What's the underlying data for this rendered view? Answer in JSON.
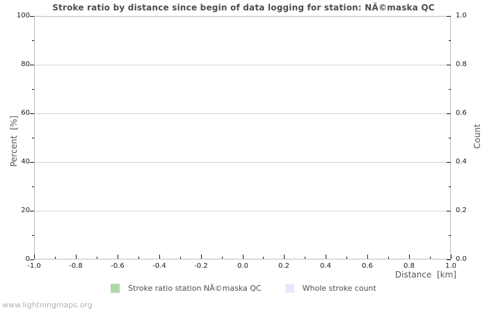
{
  "chart_data": {
    "type": "line",
    "title": "Stroke ratio by distance since begin of data logging for station: NÃ©maska QC",
    "xlabel": "Distance  [km]",
    "ylabel_left": "Percent  [%]",
    "ylabel_right": "Count",
    "xlim": [
      -1.0,
      1.0
    ],
    "ylim_left": [
      0,
      100
    ],
    "ylim_right": [
      0.0,
      1.0
    ],
    "x_ticks": [
      "-1.0",
      "-0.8",
      "-0.6",
      "-0.4",
      "-0.2",
      "0.0",
      "0.2",
      "0.4",
      "0.6",
      "0.8",
      "1.0"
    ],
    "y_ticks_left": [
      "0",
      "20",
      "40",
      "60",
      "80",
      "100"
    ],
    "y_ticks_right": [
      "0.0",
      "0.2",
      "0.4",
      "0.6",
      "0.8",
      "1.0"
    ],
    "grid": "horizontal-major-only",
    "legend_position": "bottom-center",
    "series": [
      {
        "name": "Stroke ratio station NÃ©maska QC",
        "color": "#aedaa8",
        "axis": "left",
        "x": [],
        "values": []
      },
      {
        "name": "Whole stroke count",
        "color": "#e8e8fa",
        "axis": "right",
        "x": [],
        "values": []
      }
    ]
  },
  "watermark": "www.lightningmaps.org",
  "colors": {
    "background": "#ffffff",
    "plot_border": "#bcbcbc",
    "gridline": "#d2d2d2",
    "title_text": "#4d4d4d",
    "tick_label_text": "#1a1a1a",
    "axis_title_text": "#555555",
    "legend_text": "#4d4d4d",
    "watermark_text": "#b3b3b3",
    "series_green": "#aedaa8",
    "series_lavender": "#e8e8fa"
  }
}
